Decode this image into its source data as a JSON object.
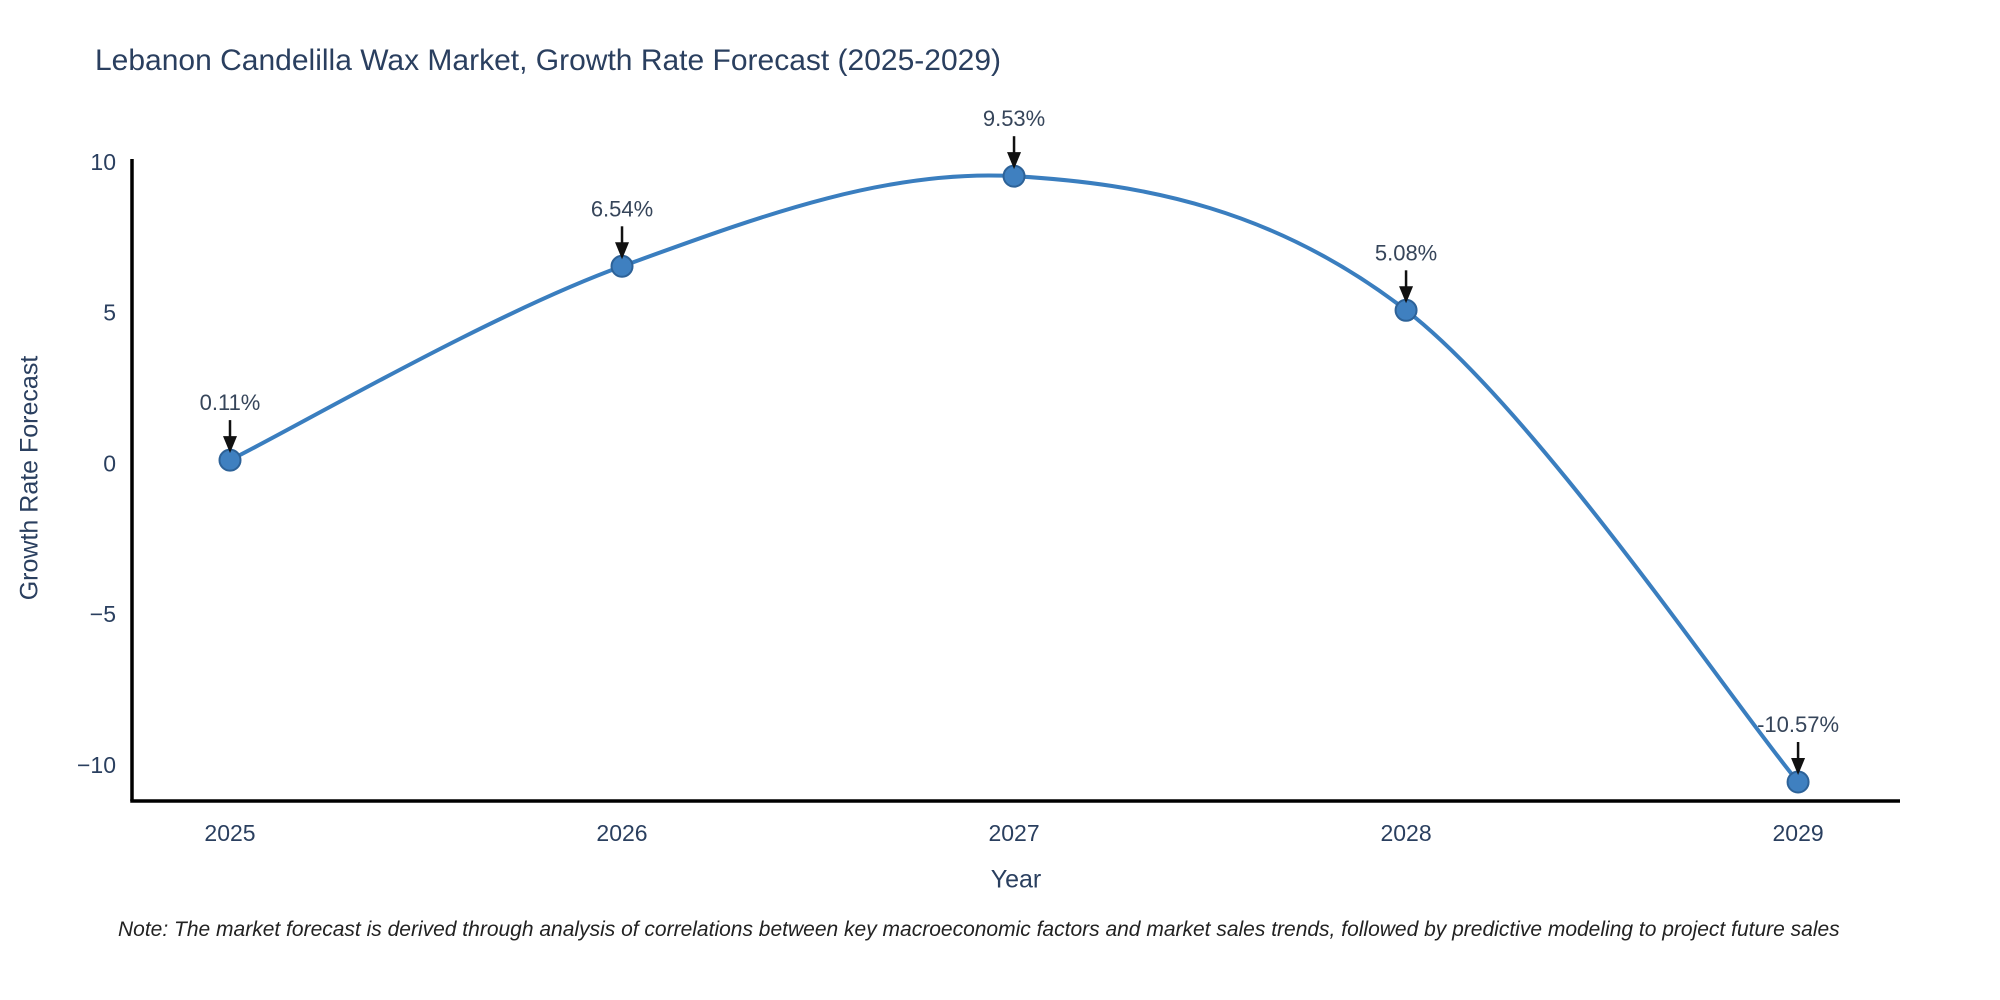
{
  "title": "Lebanon Candelilla Wax Market, Growth Rate Forecast (2025-2029)",
  "note": "Note: The market forecast is derived through analysis of correlations between key macroeconomic factors and market sales trends, followed by predictive modeling to project future sales",
  "chart_data": {
    "type": "line",
    "title": "Lebanon Candelilla Wax Market, Growth Rate Forecast (2025-2029)",
    "xlabel": "Year",
    "ylabel": "Growth Rate Forecast",
    "x": [
      2025,
      2026,
      2027,
      2028,
      2029
    ],
    "y": [
      0.11,
      6.54,
      9.53,
      5.08,
      -10.57
    ],
    "point_labels": [
      "0.11%",
      "6.54%",
      "9.53%",
      "5.08%",
      "-10.57%"
    ],
    "xtick_labels": [
      "2025",
      "2026",
      "2027",
      "2028",
      "2029"
    ],
    "yticks": [
      10,
      5,
      0,
      -5,
      -10
    ],
    "ytick_labels": [
      "10",
      "5",
      "0",
      "−5",
      "−10"
    ],
    "xlim": [
      2024.75,
      2029.26
    ],
    "ylim": [
      -11.2,
      10.1
    ],
    "grid": false,
    "legend": false,
    "line_shape": "spline",
    "line_color": "#3a7ebf",
    "marker_fill": "#3f80c0",
    "marker_edge": "#2d6298",
    "axis_color": "#000000",
    "text_color": "#2a3f5f",
    "annotation_color": "#36455a",
    "arrow_color": "#111111"
  }
}
